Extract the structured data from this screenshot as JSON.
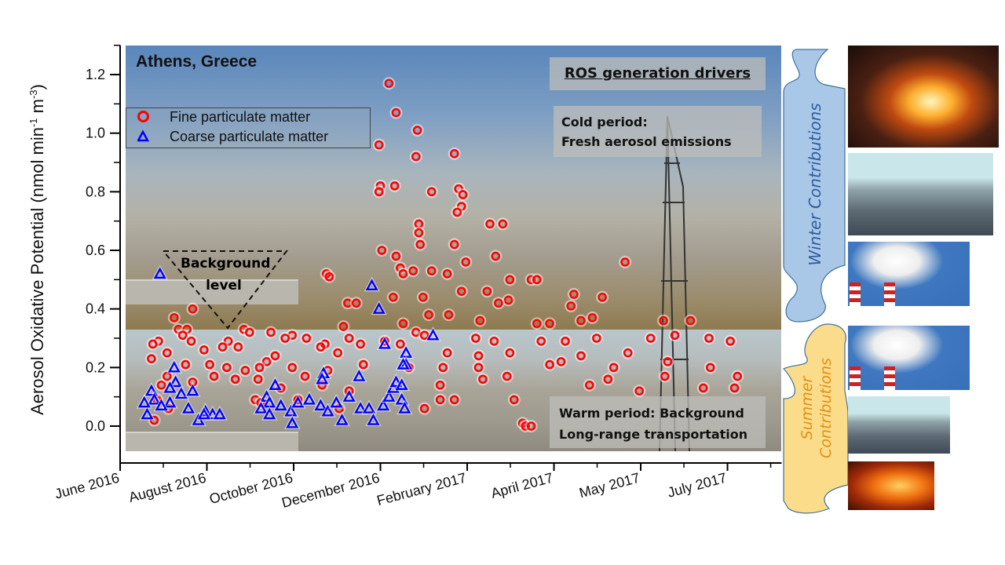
{
  "chart_data": {
    "type": "scatter",
    "title": "Athens, Greece",
    "ylabel": "Aerosol Oxidative Potential (nmol min-1 m-3)",
    "ylabel_parts": {
      "a": "Aerosol Oxidative Potential (nmol min",
      "s1": "-1",
      "b": " m",
      "s2": "-3",
      "c": ")"
    },
    "xlabel": "",
    "x_units": "days since June 2016",
    "xlim": [
      0,
      465
    ],
    "ylim": [
      -0.085,
      1.3
    ],
    "x_ticks": [
      {
        "x": 0,
        "label": "June 2016"
      },
      {
        "x": 61,
        "label": "August 2016"
      },
      {
        "x": 122,
        "label": "October 2016"
      },
      {
        "x": 183,
        "label": "December 2016"
      },
      {
        "x": 244,
        "label": "February 2017"
      },
      {
        "x": 305,
        "label": "April 2017"
      },
      {
        "x": 366,
        "label": "May 2017"
      },
      {
        "x": 427,
        "label": "July 2017"
      }
    ],
    "y_ticks": [
      0.0,
      0.2,
      0.4,
      0.6,
      0.8,
      1.0,
      1.2
    ],
    "y_tick_labels": [
      "0.0",
      "0.2",
      "0.4",
      "0.6",
      "0.8",
      "1.0",
      "1.2"
    ],
    "legend_position": "top-left",
    "series": [
      {
        "name": "Fine particulate matter",
        "marker": "circle",
        "color": "#ff0000",
        "points": [
          [
            189,
            1.17
          ],
          [
            194,
            1.07
          ],
          [
            182,
            0.96
          ],
          [
            209,
            1.01
          ],
          [
            208,
            0.92
          ],
          [
            235,
            0.93
          ],
          [
            193,
            0.82
          ],
          [
            183,
            0.82
          ],
          [
            182,
            0.8
          ],
          [
            219,
            0.8
          ],
          [
            238,
            0.81
          ],
          [
            241,
            0.79
          ],
          [
            240,
            0.75
          ],
          [
            237,
            0.73
          ],
          [
            210,
            0.69
          ],
          [
            210,
            0.66
          ],
          [
            260,
            0.69
          ],
          [
            269,
            0.69
          ],
          [
            211,
            0.62
          ],
          [
            235,
            0.62
          ],
          [
            184,
            0.6
          ],
          [
            194,
            0.58
          ],
          [
            264,
            0.58
          ],
          [
            197,
            0.54
          ],
          [
            199,
            0.52
          ],
          [
            206,
            0.53
          ],
          [
            219,
            0.53
          ],
          [
            230,
            0.52
          ],
          [
            243,
            0.56
          ],
          [
            355,
            0.56
          ],
          [
            145,
            0.52
          ],
          [
            147,
            0.51
          ],
          [
            274,
            0.5
          ],
          [
            289,
            0.5
          ],
          [
            293,
            0.5
          ],
          [
            258,
            0.46
          ],
          [
            240,
            0.46
          ],
          [
            213,
            0.44
          ],
          [
            192,
            0.44
          ],
          [
            319,
            0.45
          ],
          [
            339,
            0.44
          ],
          [
            160,
            0.42
          ],
          [
            166,
            0.42
          ],
          [
            273,
            0.43
          ],
          [
            266,
            0.42
          ],
          [
            317,
            0.41
          ],
          [
            51,
            0.4
          ],
          [
            38,
            0.37
          ],
          [
            217,
            0.38
          ],
          [
            231,
            0.38
          ],
          [
            253,
            0.36
          ],
          [
            199,
            0.35
          ],
          [
            157,
            0.34
          ],
          [
            293,
            0.35
          ],
          [
            302,
            0.35
          ],
          [
            324,
            0.36
          ],
          [
            332,
            0.37
          ],
          [
            382,
            0.36
          ],
          [
            401,
            0.36
          ],
          [
            41,
            0.33
          ],
          [
            47,
            0.33
          ],
          [
            87,
            0.33
          ],
          [
            91,
            0.32
          ],
          [
            106,
            0.32
          ],
          [
            121,
            0.31
          ],
          [
            27,
            0.29
          ],
          [
            44,
            0.31
          ],
          [
            50,
            0.29
          ],
          [
            76,
            0.29
          ],
          [
            116,
            0.3
          ],
          [
            131,
            0.3
          ],
          [
            144,
            0.28
          ],
          [
            161,
            0.3
          ],
          [
            169,
            0.28
          ],
          [
            186,
            0.29
          ],
          [
            197,
            0.28
          ],
          [
            208,
            0.32
          ],
          [
            214,
            0.31
          ],
          [
            250,
            0.3
          ],
          [
            263,
            0.29
          ],
          [
            296,
            0.29
          ],
          [
            313,
            0.29
          ],
          [
            335,
            0.3
          ],
          [
            373,
            0.3
          ],
          [
            390,
            0.31
          ],
          [
            414,
            0.3
          ],
          [
            429,
            0.29
          ],
          [
            23,
            0.28
          ],
          [
            33,
            0.25
          ],
          [
            59,
            0.26
          ],
          [
            72,
            0.27
          ],
          [
            83,
            0.27
          ],
          [
            103,
            0.22
          ],
          [
            109,
            0.24
          ],
          [
            141,
            0.27
          ],
          [
            153,
            0.25
          ],
          [
            230,
            0.25
          ],
          [
            252,
            0.24
          ],
          [
            274,
            0.25
          ],
          [
            310,
            0.22
          ],
          [
            324,
            0.24
          ],
          [
            357,
            0.25
          ],
          [
            385,
            0.22
          ],
          [
            22,
            0.23
          ],
          [
            46,
            0.21
          ],
          [
            63,
            0.21
          ],
          [
            75,
            0.2
          ],
          [
            88,
            0.19
          ],
          [
            98,
            0.2
          ],
          [
            121,
            0.2
          ],
          [
            130,
            0.17
          ],
          [
            146,
            0.19
          ],
          [
            171,
            0.21
          ],
          [
            203,
            0.2
          ],
          [
            227,
            0.2
          ],
          [
            252,
            0.2
          ],
          [
            302,
            0.21
          ],
          [
            347,
            0.2
          ],
          [
            415,
            0.2
          ],
          [
            29,
            0.14
          ],
          [
            33,
            0.17
          ],
          [
            51,
            0.15
          ],
          [
            66,
            0.17
          ],
          [
            81,
            0.16
          ],
          [
            97,
            0.16
          ],
          [
            113,
            0.13
          ],
          [
            142,
            0.14
          ],
          [
            161,
            0.12
          ],
          [
            225,
            0.14
          ],
          [
            255,
            0.16
          ],
          [
            272,
            0.17
          ],
          [
            330,
            0.14
          ],
          [
            343,
            0.16
          ],
          [
            365,
            0.12
          ],
          [
            383,
            0.17
          ],
          [
            410,
            0.13
          ],
          [
            432,
            0.13
          ],
          [
            434,
            0.17
          ],
          [
            26,
            0.09
          ],
          [
            34,
            0.06
          ],
          [
            95,
            0.09
          ],
          [
            99,
            0.08
          ],
          [
            125,
            0.09
          ],
          [
            154,
            0.06
          ],
          [
            225,
            0.09
          ],
          [
            235,
            0.09
          ],
          [
            277,
            0.09
          ],
          [
            214,
            0.06
          ],
          [
            24,
            0.02
          ],
          [
            283,
            0.01
          ],
          [
            285,
            0.0
          ],
          [
            289,
            0.0
          ]
        ]
      },
      {
        "name": "Coarse particulate matter",
        "marker": "triangle",
        "color": "#0000ff",
        "points": [
          [
            28,
            0.52
          ],
          [
            177,
            0.48
          ],
          [
            182,
            0.4
          ],
          [
            220,
            0.31
          ],
          [
            186,
            0.28
          ],
          [
            201,
            0.25
          ],
          [
            38,
            0.2
          ],
          [
            22,
            0.12
          ],
          [
            39,
            0.15
          ],
          [
            43,
            0.11
          ],
          [
            143,
            0.18
          ],
          [
            142,
            0.16
          ],
          [
            168,
            0.17
          ],
          [
            201,
            0.21
          ],
          [
            35,
            0.08
          ],
          [
            24,
            0.09
          ],
          [
            35,
            0.13
          ],
          [
            51,
            0.12
          ],
          [
            48,
            0.06
          ],
          [
            60,
            0.05
          ],
          [
            65,
            0.04
          ],
          [
            55,
            0.02
          ],
          [
            59,
            0.04
          ],
          [
            70,
            0.04
          ],
          [
            103,
            0.1
          ],
          [
            109,
            0.14
          ],
          [
            105,
            0.08
          ],
          [
            113,
            0.07
          ],
          [
            99,
            0.06
          ],
          [
            105,
            0.04
          ],
          [
            120,
            0.05
          ],
          [
            121,
            0.01
          ],
          [
            125,
            0.08
          ],
          [
            133,
            0.09
          ],
          [
            141,
            0.07
          ],
          [
            146,
            0.05
          ],
          [
            152,
            0.08
          ],
          [
            156,
            0.02
          ],
          [
            161,
            0.1
          ],
          [
            169,
            0.06
          ],
          [
            175,
            0.06
          ],
          [
            178,
            0.02
          ],
          [
            185,
            0.07
          ],
          [
            189,
            0.1
          ],
          [
            192,
            0.13
          ],
          [
            194,
            0.15
          ],
          [
            198,
            0.14
          ],
          [
            199,
            0.21
          ],
          [
            198,
            0.09
          ],
          [
            200,
            0.06
          ],
          [
            19,
            0.04
          ],
          [
            29,
            0.07
          ],
          [
            17,
            0.08
          ]
        ]
      }
    ]
  },
  "annotations": {
    "ros_title": "ROS generation drivers",
    "cold_1": "Cold period:",
    "cold_2": "Fresh aerosol emissions",
    "warm_1": "Warm period: Background",
    "warm_2": "Long-range transportation",
    "background_1": "Background",
    "background_2": "level"
  },
  "side_panel": {
    "winter_label": "Winter Contributions",
    "summer_label_1": "Summer",
    "summer_label_2": "Contributions",
    "winter_color": "#a9c8e8",
    "summer_color": "#fbdc8a",
    "winter_text_color": "#2f5d9c",
    "summer_text_color": "#e48f14"
  }
}
